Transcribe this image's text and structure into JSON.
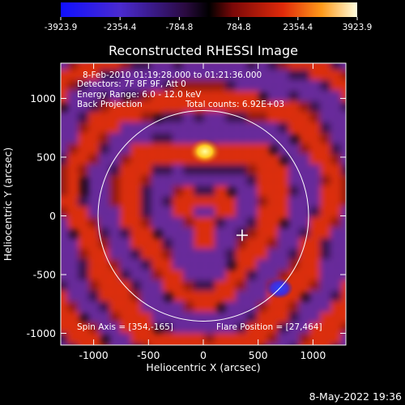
{
  "colorbar": {
    "tick_labels": [
      "-3923.9",
      "-2354.4",
      "-784.8",
      "784.8",
      "2354.4",
      "3923.9"
    ],
    "min": -3923.9,
    "max": 3923.9
  },
  "image": {
    "title": "Reconstructed RHESSI Image",
    "info": {
      "date_range": "8-Feb-2010 01:19:28.000 to 01:21:36.000",
      "detectors": "Detectors: 7F 8F 9F, Att 0",
      "energy": "Energy Range: 6.0 - 12.0 keV",
      "method": "Back Projection",
      "counts": "Total counts: 6.92E+03"
    },
    "spin_axis": "Spin Axis = [354,-165]",
    "flare_position": "Flare Position = [27,464]",
    "xlabel": "Heliocentric X (arcsec)",
    "ylabel": "Heliocentric Y (arcsec)",
    "x_ticks": [
      "-1000",
      "-500",
      "0",
      "500",
      "1000"
    ],
    "y_ticks": [
      "1000",
      "500",
      "0",
      "-500",
      "-1000"
    ],
    "xlim": [
      -1300,
      1300
    ],
    "ylim": [
      -1100,
      1300
    ],
    "solar_limb_radius_arcsec": 960,
    "marker_position_arcsec": [
      354,
      -165
    ],
    "colors": {
      "hot_positive": "#ffee55",
      "positive": "#e03010",
      "negative": "#6a2a9e",
      "strong_negative": "#2244ee",
      "background": "#000000"
    }
  },
  "footer": {
    "timestamp": "8-May-2022 19:36"
  }
}
